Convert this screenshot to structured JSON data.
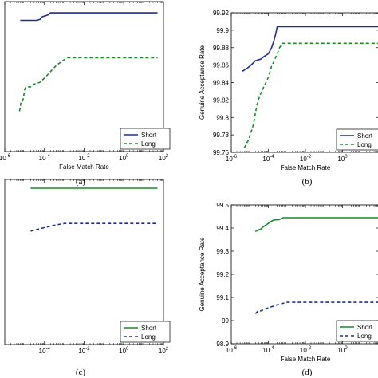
{
  "chart_data": [
    {
      "panel": "(a)",
      "type": "line",
      "xlabel": "False Match Rate",
      "ylabel": "",
      "xscale": "log",
      "xlim": [
        1e-06,
        100
      ],
      "ylim": [
        99.76,
        99.92
      ],
      "xticks": [
        {
          "value": 1e-06,
          "base": "10",
          "exp": "-6"
        },
        {
          "value": 0.0001,
          "base": "10",
          "exp": "-4"
        },
        {
          "value": 0.01,
          "base": "10",
          "exp": "-2"
        },
        {
          "value": 1,
          "base": "10",
          "exp": "0"
        },
        {
          "value": 100,
          "base": "10",
          "exp": "2"
        }
      ],
      "yticks": [],
      "legend": {
        "position": "bottom-right",
        "entries": [
          "Short",
          "Long"
        ]
      },
      "series": [
        {
          "name": "Short",
          "color": "#1f2f8f",
          "dash": "solid",
          "points": [
            [
              6e-06,
              99.9
            ],
            [
              4e-05,
              99.9
            ],
            [
              6e-05,
              99.901
            ],
            [
              8e-05,
              99.904
            ],
            [
              0.00012,
              99.905
            ],
            [
              0.00016,
              99.906
            ],
            [
              0.0002,
              99.908
            ],
            [
              50,
              99.908
            ]
          ]
        },
        {
          "name": "Long",
          "color": "#1a8a2a",
          "dash": "dashed",
          "points": [
            [
              5.5e-06,
              99.803
            ],
            [
              6.2e-06,
              99.808
            ],
            [
              6.5e-06,
              99.813
            ],
            [
              8e-06,
              99.814
            ],
            [
              8.8e-06,
              99.818
            ],
            [
              1e-05,
              99.826
            ],
            [
              1.1e-05,
              99.828
            ],
            [
              1.4e-05,
              99.829
            ],
            [
              2.3e-05,
              99.829
            ],
            [
              3e-05,
              99.832
            ],
            [
              6e-05,
              99.834
            ],
            [
              0.00012,
              99.84
            ],
            [
              0.00024,
              99.847
            ],
            [
              0.0004,
              99.852
            ],
            [
              0.001,
              99.858
            ],
            [
              0.0015,
              99.86
            ],
            [
              50,
              99.86
            ]
          ]
        }
      ]
    },
    {
      "panel": "(b)",
      "type": "line",
      "xlabel": "False Match Rate",
      "ylabel": "Genuine Acceptance Rate",
      "xscale": "log",
      "xlim": [
        1e-06,
        100
      ],
      "ylim": [
        99.76,
        99.92
      ],
      "xticks": [
        {
          "value": 1e-06,
          "base": "10",
          "exp": "-6"
        },
        {
          "value": 0.0001,
          "base": "10",
          "exp": "-4"
        },
        {
          "value": 0.01,
          "base": "10",
          "exp": "-2"
        },
        {
          "value": 1,
          "base": "10",
          "exp": "0"
        }
      ],
      "yticks": [
        99.76,
        99.78,
        99.8,
        99.82,
        99.84,
        99.86,
        99.88,
        99.9,
        99.92
      ],
      "ytick_labels": [
        "99.76",
        "99.78",
        "99.8",
        "99.82",
        "99.84",
        "99.86",
        "99.88",
        "99.9",
        "99.92"
      ],
      "legend": {
        "position": "bottom-right",
        "entries": [
          "Short",
          "Long"
        ]
      },
      "series": [
        {
          "name": "Short",
          "color": "#1f2f8f",
          "dash": "solid",
          "points": [
            [
              4e-06,
              99.853
            ],
            [
              8e-06,
              99.857
            ],
            [
              1.3e-05,
              99.861
            ],
            [
              2e-05,
              99.865
            ],
            [
              4e-05,
              99.867
            ],
            [
              6e-05,
              99.87
            ],
            [
              0.0001,
              99.873
            ],
            [
              0.00015,
              99.88
            ],
            [
              0.0002,
              99.888
            ],
            [
              0.00025,
              99.896
            ],
            [
              0.0003,
              99.904
            ],
            [
              100,
              99.904
            ]
          ]
        },
        {
          "name": "Long",
          "color": "#1a8a2a",
          "dash": "dashed",
          "points": [
            [
              5e-06,
              99.765
            ],
            [
              7e-06,
              99.771
            ],
            [
              9e-06,
              99.775
            ],
            [
              1.1e-05,
              99.782
            ],
            [
              1.3e-05,
              99.786
            ],
            [
              1.6e-05,
              99.793
            ],
            [
              2e-05,
              99.805
            ],
            [
              2.5e-05,
              99.815
            ],
            [
              3e-05,
              99.821
            ],
            [
              4e-05,
              99.828
            ],
            [
              6e-05,
              99.836
            ],
            [
              0.0001,
              99.846
            ],
            [
              0.00015,
              99.859
            ],
            [
              0.0002,
              99.864
            ],
            [
              0.0003,
              99.873
            ],
            [
              0.0004,
              99.88
            ],
            [
              0.0006,
              99.885
            ],
            [
              100,
              99.885
            ]
          ]
        }
      ]
    },
    {
      "panel": "(c)",
      "type": "line",
      "xlabel": "",
      "ylabel": "",
      "xscale": "log",
      "xlim": [
        1e-06,
        100
      ],
      "ylim": [
        98.9,
        99.5
      ],
      "xticks": [
        {
          "value": 0.0001,
          "base": "10",
          "exp": "-4"
        },
        {
          "value": 0.01,
          "base": "10",
          "exp": "-2"
        },
        {
          "value": 1,
          "base": "10",
          "exp": "0"
        },
        {
          "value": 100,
          "base": "10",
          "exp": "2"
        }
      ],
      "yticks": [],
      "legend": {
        "position": "bottom-right",
        "entries": [
          "Short",
          "Long"
        ]
      },
      "series": [
        {
          "name": "Short",
          "color": "#1a8a2a",
          "dash": "solid",
          "points": [
            [
              2e-05,
              99.468
            ],
            [
              50,
              99.468
            ]
          ]
        },
        {
          "name": "Long",
          "color": "#1f2f8f",
          "dash": "dashed",
          "points": [
            [
              2e-05,
              99.312
            ],
            [
              0.0001,
              99.325
            ],
            [
              0.0003,
              99.333
            ],
            [
              0.001,
              99.34
            ],
            [
              50,
              99.34
            ]
          ]
        }
      ]
    },
    {
      "panel": "(d)",
      "type": "line",
      "xlabel": "False Match Rate",
      "ylabel": "Genuine Acceptance Rate",
      "xscale": "log",
      "xlim": [
        1e-06,
        100
      ],
      "ylim": [
        98.9,
        99.5
      ],
      "xticks": [
        {
          "value": 1e-06,
          "base": "10",
          "exp": "-6"
        },
        {
          "value": 0.0001,
          "base": "10",
          "exp": "-4"
        },
        {
          "value": 0.01,
          "base": "10",
          "exp": "-2"
        },
        {
          "value": 1,
          "base": "10",
          "exp": "0"
        }
      ],
      "yticks": [
        98.9,
        99.0,
        99.1,
        99.2,
        99.3,
        99.4,
        99.5
      ],
      "ytick_labels": [
        "98.9",
        "99",
        "99.1",
        "99.2",
        "99.3",
        "99.4",
        "99.5"
      ],
      "legend": {
        "position": "bottom-right",
        "entries": [
          "Short",
          "Long"
        ]
      },
      "series": [
        {
          "name": "Short",
          "color": "#1a8a2a",
          "dash": "solid",
          "points": [
            [
              2e-05,
              99.385
            ],
            [
              2.5e-05,
              99.389
            ],
            [
              3e-05,
              99.392
            ],
            [
              4e-05,
              99.396
            ],
            [
              5e-05,
              99.404
            ],
            [
              7e-05,
              99.412
            ],
            [
              0.0001,
              99.42
            ],
            [
              0.00015,
              99.43
            ],
            [
              0.0002,
              99.435
            ],
            [
              0.0004,
              99.437
            ],
            [
              0.0006,
              99.445
            ],
            [
              100,
              99.445
            ]
          ]
        },
        {
          "name": "Long",
          "color": "#1f2f8f",
          "dash": "dashed",
          "points": [
            [
              2e-05,
              99.03
            ],
            [
              2.5e-05,
              99.038
            ],
            [
              4e-05,
              99.042
            ],
            [
              0.0001,
              99.055
            ],
            [
              0.0003,
              99.068
            ],
            [
              0.001,
              99.079
            ],
            [
              100,
              99.079
            ]
          ]
        }
      ]
    }
  ]
}
